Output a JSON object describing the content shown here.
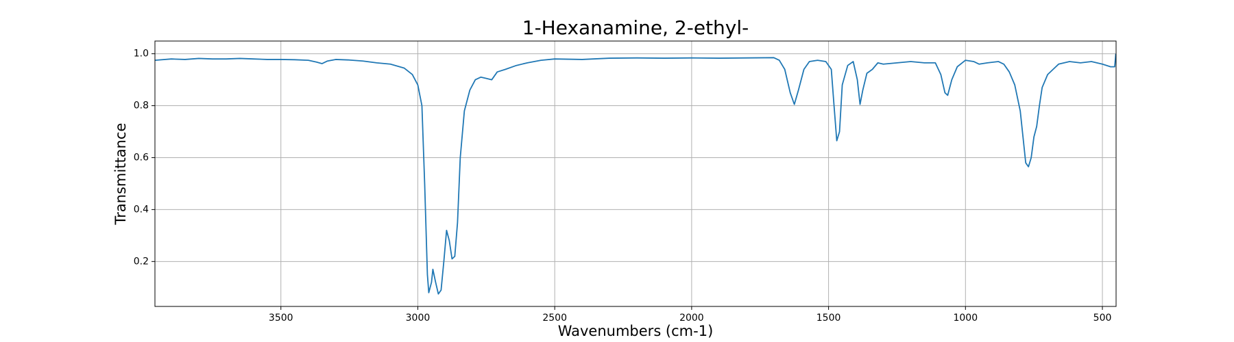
{
  "chart_data": {
    "type": "line",
    "title": "1-Hexanamine, 2-ethyl-",
    "x_label": "Wavenumbers (cm-1)",
    "y_label": "Transmittance",
    "x": [
      3960,
      3900,
      3850,
      3800,
      3750,
      3700,
      3650,
      3600,
      3550,
      3500,
      3450,
      3400,
      3370,
      3350,
      3330,
      3300,
      3250,
      3200,
      3150,
      3100,
      3050,
      3020,
      3000,
      2985,
      2975,
      2965,
      2960,
      2950,
      2945,
      2935,
      2925,
      2915,
      2905,
      2895,
      2885,
      2875,
      2865,
      2855,
      2845,
      2830,
      2810,
      2790,
      2770,
      2750,
      2730,
      2710,
      2680,
      2640,
      2600,
      2550,
      2500,
      2400,
      2300,
      2200,
      2100,
      2000,
      1900,
      1800,
      1700,
      1680,
      1660,
      1640,
      1625,
      1610,
      1590,
      1570,
      1540,
      1510,
      1490,
      1480,
      1470,
      1460,
      1450,
      1430,
      1410,
      1395,
      1385,
      1375,
      1360,
      1340,
      1320,
      1300,
      1250,
      1200,
      1150,
      1110,
      1090,
      1075,
      1065,
      1050,
      1030,
      1000,
      970,
      950,
      920,
      880,
      860,
      840,
      820,
      800,
      790,
      780,
      770,
      760,
      750,
      740,
      730,
      720,
      700,
      680,
      660,
      620,
      580,
      540,
      500,
      470,
      455,
      451
    ],
    "values": [
      0.975,
      0.98,
      0.978,
      0.982,
      0.98,
      0.98,
      0.982,
      0.98,
      0.978,
      0.978,
      0.977,
      0.975,
      0.968,
      0.962,
      0.972,
      0.978,
      0.976,
      0.972,
      0.965,
      0.96,
      0.945,
      0.92,
      0.88,
      0.8,
      0.5,
      0.15,
      0.08,
      0.12,
      0.17,
      0.12,
      0.075,
      0.09,
      0.2,
      0.32,
      0.28,
      0.21,
      0.22,
      0.35,
      0.6,
      0.78,
      0.86,
      0.9,
      0.91,
      0.905,
      0.9,
      0.93,
      0.94,
      0.955,
      0.965,
      0.975,
      0.98,
      0.978,
      0.983,
      0.984,
      0.983,
      0.984,
      0.983,
      0.984,
      0.985,
      0.975,
      0.94,
      0.85,
      0.805,
      0.86,
      0.94,
      0.97,
      0.975,
      0.97,
      0.94,
      0.8,
      0.665,
      0.7,
      0.88,
      0.955,
      0.97,
      0.9,
      0.805,
      0.86,
      0.925,
      0.94,
      0.965,
      0.96,
      0.965,
      0.97,
      0.965,
      0.965,
      0.92,
      0.85,
      0.84,
      0.9,
      0.95,
      0.975,
      0.97,
      0.96,
      0.965,
      0.97,
      0.96,
      0.93,
      0.88,
      0.78,
      0.68,
      0.58,
      0.565,
      0.6,
      0.68,
      0.72,
      0.8,
      0.87,
      0.92,
      0.94,
      0.96,
      0.97,
      0.965,
      0.97,
      0.96,
      0.95,
      0.95,
      1.0
    ],
    "color": "#1f77b4",
    "xlim": [
      3960,
      450
    ],
    "ylim": [
      0.027,
      1.049
    ],
    "xticks": [
      3500,
      3000,
      2500,
      2000,
      1500,
      1000,
      500
    ],
    "yticks": [
      0.2,
      0.4,
      0.6,
      0.8,
      {
        "value": 1.0,
        "label": "1.0"
      }
    ],
    "grid": true
  }
}
